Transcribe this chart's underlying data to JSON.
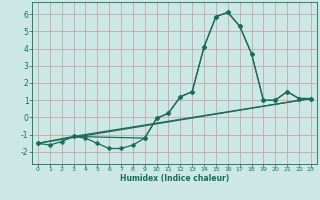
{
  "xlabel": "Humidex (Indice chaleur)",
  "xlim": [
    -0.5,
    23.5
  ],
  "ylim": [
    -2.7,
    6.7
  ],
  "xticks": [
    0,
    1,
    2,
    3,
    4,
    5,
    6,
    7,
    8,
    9,
    10,
    11,
    12,
    13,
    14,
    15,
    16,
    17,
    18,
    19,
    20,
    21,
    22,
    23
  ],
  "yticks": [
    -2,
    -1,
    0,
    1,
    2,
    3,
    4,
    5,
    6
  ],
  "background_color": "#cce8e4",
  "grid_color": "#c8a8a8",
  "line_color": "#1a6b5a",
  "line1_x": [
    0,
    1,
    2,
    3,
    4,
    5,
    6,
    7,
    8,
    9,
    10,
    11,
    12,
    13,
    14,
    15,
    16,
    17,
    18,
    19,
    20,
    21,
    22,
    23
  ],
  "line1_y": [
    -1.5,
    -1.6,
    -1.4,
    -1.1,
    -1.2,
    -1.5,
    -1.8,
    -1.8,
    -1.6,
    -1.2,
    -0.05,
    0.25,
    1.2,
    1.5,
    4.1,
    5.85,
    6.1,
    5.3,
    3.7,
    1.0,
    1.0,
    1.5,
    1.1,
    1.1
  ],
  "line2_x": [
    0,
    3,
    9,
    10,
    11,
    12,
    13,
    14,
    15,
    16,
    17,
    18,
    19,
    20,
    21,
    22,
    23
  ],
  "line2_y": [
    -1.5,
    -1.1,
    -1.2,
    -0.05,
    0.25,
    1.2,
    1.5,
    4.1,
    5.85,
    6.1,
    5.3,
    3.7,
    1.0,
    1.0,
    1.5,
    1.1,
    1.1
  ],
  "line3_x": [
    0,
    23
  ],
  "line3_y": [
    -1.5,
    1.1
  ],
  "line4_x": [
    3,
    23
  ],
  "line4_y": [
    -1.1,
    1.1
  ],
  "marker_size": 2.5,
  "linewidth": 0.9
}
